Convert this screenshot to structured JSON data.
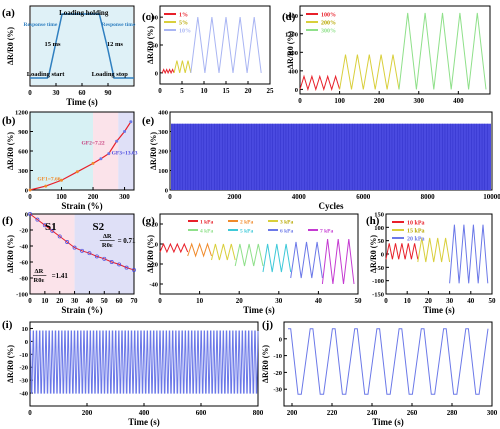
{
  "chart_data": [
    {
      "panel": "a",
      "type": "line",
      "xlabel": "Time (s)",
      "ylabel": "ΔR/R0 (%)",
      "xlim": [
        0,
        120
      ],
      "ylim": [
        0,
        1
      ],
      "xticks": [
        "0",
        "30",
        "60",
        "90"
      ],
      "annotations": [
        "Loading holding",
        "Response time",
        "Response time",
        "15 ms",
        "12 ms",
        "Loading start",
        "Loading stop"
      ],
      "series": [
        {
          "x": [
            0,
            20,
            22,
            30,
            37,
            80,
            90,
            97,
            120
          ],
          "y": [
            0.1,
            0.1,
            0.15,
            0.55,
            0.9,
            0.9,
            0.45,
            0.1,
            0.1
          ]
        }
      ]
    },
    {
      "panel": "b",
      "type": "line",
      "xlabel": "Strain (%)",
      "ylabel": "ΔR/R0 (%)",
      "xlim": [
        0,
        330
      ],
      "ylim": [
        0,
        1200
      ],
      "xticks": [
        "0",
        "100",
        "200",
        "300"
      ],
      "yticks": [
        "0",
        "300",
        "600",
        "900",
        "1200"
      ],
      "annotations": [
        "GF1=7.66",
        "GF2=7.22",
        "GF3=13.63"
      ],
      "regions": [
        [
          0,
          200
        ],
        [
          200,
          280
        ],
        [
          280,
          330
        ]
      ],
      "series": [
        {
          "x": [
            0,
            50,
            100,
            150,
            200,
            225,
            250,
            275,
            300,
            320
          ],
          "y": [
            0,
            60,
            150,
            280,
            410,
            480,
            560,
            750,
            900,
            1050
          ]
        }
      ]
    },
    {
      "panel": "c",
      "type": "line",
      "ylabel": "ΔR/R0 (%)",
      "xlim": [
        0,
        25
      ],
      "ylim": [
        -20,
        120
      ],
      "xticks": [
        "0",
        "5",
        "10",
        "15",
        "20",
        "25"
      ],
      "yticks": [
        "0",
        "50",
        "100"
      ],
      "series": [
        {
          "name": "1%",
          "color": "#e8202a",
          "x0": 0.5,
          "x1": 3.2,
          "cycles": 4,
          "low": 0,
          "high": 6
        },
        {
          "name": "5%",
          "color": "#d9cf3b",
          "x0": 3.2,
          "x1": 7.0,
          "cycles": 3,
          "low": 0,
          "high": 22
        },
        {
          "name": "10%",
          "color": "#a9b5f3",
          "x0": 7.0,
          "x1": 23.0,
          "cycles": 5,
          "low": 0,
          "high": 100
        }
      ]
    },
    {
      "panel": "d",
      "type": "line",
      "ylabel": "ΔR/R0 (%)",
      "xlim": [
        0,
        480
      ],
      "ylim": [
        -100,
        1800
      ],
      "xticks": [
        "0",
        "100",
        "200",
        "300",
        "400"
      ],
      "yticks": [
        "0",
        "400",
        "800",
        "1200",
        "1600"
      ],
      "series": [
        {
          "name": "100%",
          "color": "#e8202a",
          "x0": 0,
          "x1": 100,
          "cycles": 5,
          "low": 0,
          "high": 280
        },
        {
          "name": "200%",
          "color": "#d9cf3b",
          "x0": 100,
          "x1": 250,
          "cycles": 5,
          "low": 0,
          "high": 750
        },
        {
          "name": "300%",
          "color": "#8fe08a",
          "x0": 250,
          "x1": 470,
          "cycles": 5,
          "low": 0,
          "high": 1650
        }
      ]
    },
    {
      "panel": "e",
      "type": "area",
      "xlabel": "Cycles",
      "ylabel": "ΔR/R0 (%)",
      "xlim": [
        0,
        10000
      ],
      "ylim": [
        0,
        400
      ],
      "xticks": [
        "0",
        "2000",
        "4000",
        "6000",
        "8000",
        "10000"
      ],
      "yticks": [
        "0",
        "100",
        "200",
        "300",
        "400"
      ],
      "series": [
        {
          "color": "#4a4ae0",
          "low": 0,
          "high": 340
        }
      ]
    },
    {
      "panel": "f",
      "type": "scatter",
      "xlabel": "Strain (%)",
      "ylabel": "ΔR/R0 (%)",
      "xlim": [
        0,
        70
      ],
      "ylim": [
        -100,
        0
      ],
      "xticks": [
        "0",
        "10",
        "20",
        "30",
        "40",
        "50",
        "60",
        "70"
      ],
      "yticks": [
        "0",
        "-20",
        "-40",
        "-60",
        "-80",
        "-100"
      ],
      "annotations": [
        "S1",
        "S2",
        "ΔR",
        "R0ε",
        "=1.41",
        "ΔR",
        "R0ε",
        "= 0.71"
      ],
      "regions": [
        [
          0,
          30
        ],
        [
          30,
          70
        ]
      ],
      "series": [
        {
          "x": [
            0,
            5,
            10,
            15,
            20,
            25,
            30,
            35,
            40,
            45,
            50,
            55,
            60,
            65,
            70
          ],
          "y": [
            0,
            -7,
            -14,
            -21,
            -28,
            -35,
            -42,
            -46,
            -49,
            -53,
            -56,
            -60,
            -63,
            -67,
            -70
          ]
        }
      ]
    },
    {
      "panel": "g",
      "type": "line",
      "xlabel": "Time (s)",
      "ylabel": "ΔR/R0 (%)",
      "xlim": [
        0,
        50
      ],
      "ylim": [
        -50,
        30
      ],
      "xticks": [
        "0",
        "10",
        "20",
        "30",
        "40",
        "50"
      ],
      "yticks": [
        "20",
        "0",
        "-20",
        "-40"
      ],
      "series": [
        {
          "name": "1 kPa",
          "color": "#e8202a",
          "x0": 0,
          "x1": 7,
          "cycles": 4,
          "low": -8,
          "high": 0
        },
        {
          "name": "2 kPa",
          "color": "#f08a2a",
          "x0": 7,
          "x1": 13,
          "cycles": 3,
          "low": -12,
          "high": 0
        },
        {
          "name": "3 kPa",
          "color": "#d9cf3b",
          "x0": 13,
          "x1": 19,
          "cycles": 3,
          "low": -16,
          "high": 0
        },
        {
          "name": "4 kPa",
          "color": "#8fe08a",
          "x0": 19,
          "x1": 26,
          "cycles": 3,
          "low": -22,
          "high": 0
        },
        {
          "name": "5 kPa",
          "color": "#3ec9d8",
          "x0": 26,
          "x1": 33,
          "cycles": 3,
          "low": -28,
          "high": 0
        },
        {
          "name": "6 kPa",
          "color": "#6b78e8",
          "x0": 33,
          "x1": 41,
          "cycles": 3,
          "low": -34,
          "high": 2
        },
        {
          "name": "7 kPa",
          "color": "#c43ad1",
          "x0": 41,
          "x1": 49,
          "cycles": 3,
          "low": -40,
          "high": 5
        }
      ]
    },
    {
      "panel": "h",
      "type": "line",
      "xlabel": "Time (s)",
      "ylabel": "ΔR/R0 (%)",
      "xlim": [
        0,
        50
      ],
      "ylim": [
        -150,
        150
      ],
      "xticks": [
        "0",
        "10",
        "20",
        "30",
        "40",
        "50"
      ],
      "yticks": [
        "150",
        "100",
        "50",
        "0",
        "-50",
        "-100",
        "-150"
      ],
      "series": [
        {
          "name": "10 kPa",
          "color": "#e8202a",
          "x0": 0,
          "x1": 15,
          "cycles": 5,
          "low": -20,
          "high": 40
        },
        {
          "name": "15 kPa",
          "color": "#d9cf3b",
          "x0": 15,
          "x1": 30,
          "cycles": 4,
          "low": -30,
          "high": 60
        },
        {
          "name": "20 kPa",
          "color": "#6b78e8",
          "x0": 30,
          "x1": 48,
          "cycles": 4,
          "low": -110,
          "high": 110
        }
      ]
    },
    {
      "panel": "i",
      "type": "line",
      "xlabel": "Time (s)",
      "ylabel": "ΔR/R0 (%)",
      "xlim": [
        0,
        800
      ],
      "ylim": [
        -50,
        15
      ],
      "xticks": [
        "0",
        "200",
        "400",
        "600",
        "800"
      ],
      "yticks": [
        "10",
        "0",
        "-10",
        "-20",
        "-30",
        "-40"
      ],
      "series": [
        {
          "color": "#6b78e8",
          "x0": 0,
          "x1": 800,
          "cycles": 72,
          "low": -40,
          "high": 8
        }
      ]
    },
    {
      "panel": "j",
      "type": "line",
      "xlabel": "Time (s)",
      "ylabel": "ΔR/R0 (%)",
      "xlim": [
        196,
        300
      ],
      "ylim": [
        -40,
        10
      ],
      "xticks": [
        "200",
        "220",
        "240",
        "260",
        "280",
        "300"
      ],
      "yticks": [
        "0",
        "-10",
        "-20",
        "-30"
      ],
      "series": [
        {
          "color": "#6b78e8",
          "x0": 198,
          "x1": 298,
          "cycles": 9,
          "low": -33,
          "high": 6
        }
      ]
    }
  ]
}
